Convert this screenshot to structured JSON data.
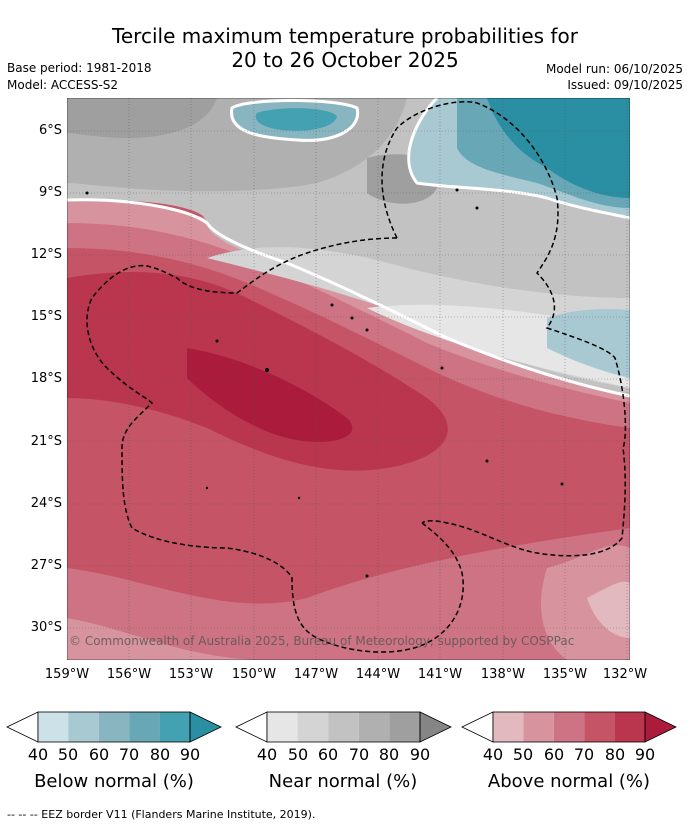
{
  "title": {
    "line1": "Tercile maximum temperature probabilities for",
    "line2": "20 to 26 October 2025"
  },
  "meta": {
    "base_period": "Base period: 1981-2018",
    "model": "Model: ACCESS-S2",
    "model_run": "Model run: 06/10/2025",
    "issued": "Issued: 09/10/2025"
  },
  "map": {
    "lat_labels": [
      "6°S",
      "9°S",
      "12°S",
      "15°S",
      "18°S",
      "21°S",
      "24°S",
      "27°S",
      "30°S"
    ],
    "lon_labels": [
      "159°W",
      "156°W",
      "153°W",
      "150°W",
      "147°W",
      "144°W",
      "141°W",
      "138°W",
      "135°W",
      "132°W"
    ],
    "copyright": "© Commonwealth of Australia 2025, Bureau of Meteorology, supported by COSPPac"
  },
  "colorbars": [
    {
      "label": "Below normal (%)",
      "ticks": [
        "40",
        "50",
        "60",
        "70",
        "80",
        "90"
      ],
      "colors": [
        "#ffffff",
        "#cce2e8",
        "#a8c9d1",
        "#89b5c1",
        "#67a7b6",
        "#44a1b1",
        "#2b8fa3"
      ]
    },
    {
      "label": "Near normal (%)",
      "ticks": [
        "40",
        "50",
        "60",
        "70",
        "80",
        "90"
      ],
      "colors": [
        "#ffffff",
        "#e6e6e6",
        "#d4d4d4",
        "#c2c2c2",
        "#b0b0b0",
        "#9f9f9f",
        "#858585"
      ]
    },
    {
      "label": "Above normal (%)",
      "ticks": [
        "40",
        "50",
        "60",
        "70",
        "80",
        "90"
      ],
      "colors": [
        "#ffffff",
        "#e2b9bf",
        "#d7949e",
        "#cd7383",
        "#c45466",
        "#b9364e",
        "#ab1c3c"
      ]
    }
  ],
  "footer": "--  --  -- EEZ border V11 (Flanders Marine Institute, 2019)."
}
